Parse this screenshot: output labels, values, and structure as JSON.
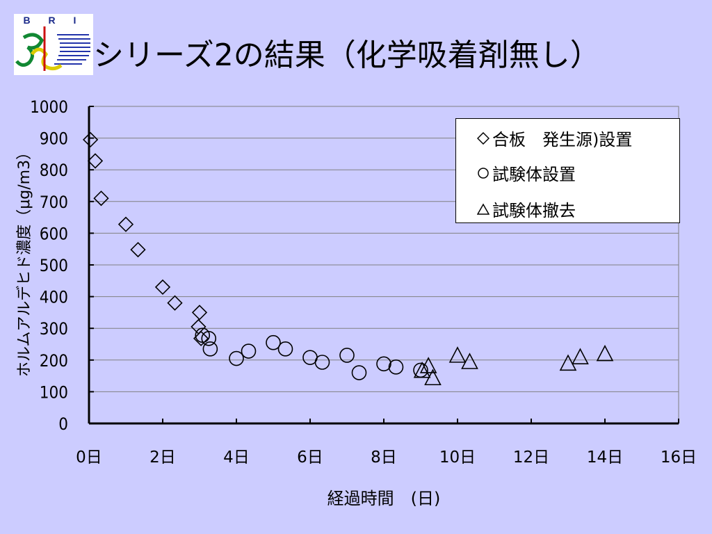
{
  "logo": {
    "text": "B R I"
  },
  "title": "シリーズ2の結果（化学吸着剤無し）",
  "chart_data": {
    "type": "scatter",
    "xlabel": "経過時間　(日)",
    "ylabel": "ホルムアルデヒド濃度（μg/m3）",
    "xlim": [
      0,
      16
    ],
    "ylim": [
      0,
      1000
    ],
    "x_ticks": [
      "0日",
      "2日",
      "4日",
      "6日",
      "8日",
      "10日",
      "12日",
      "14日",
      "16日"
    ],
    "y_ticks": [
      "0",
      "100",
      "200",
      "300",
      "400",
      "500",
      "600",
      "700",
      "800",
      "900",
      "1000"
    ],
    "grid": "horizontal",
    "legend_position": "top-right",
    "series": [
      {
        "name": "合板　発生源)設置",
        "marker": "diamond",
        "x": [
          0.04,
          0.17,
          0.33,
          1.0,
          1.33,
          2.0,
          2.33,
          3.0,
          2.97,
          3.04
        ],
        "y": [
          895,
          828,
          710,
          628,
          548,
          430,
          380,
          350,
          305,
          268
        ]
      },
      {
        "name": "試験体設置",
        "marker": "circle",
        "x": [
          3.08,
          3.25,
          3.29,
          4.0,
          4.33,
          5.0,
          5.33,
          6.0,
          6.33,
          7.0,
          7.33,
          8.0,
          8.33,
          9.0
        ],
        "y": [
          278,
          268,
          235,
          205,
          228,
          255,
          235,
          208,
          193,
          215,
          160,
          188,
          178,
          168
        ]
      },
      {
        "name": "試験体撤去",
        "marker": "triangle",
        "x": [
          9.04,
          9.21,
          9.33,
          10.0,
          10.33,
          13.0,
          13.33,
          14.0
        ],
        "y": [
          165,
          180,
          142,
          213,
          193,
          188,
          208,
          218
        ]
      }
    ]
  }
}
